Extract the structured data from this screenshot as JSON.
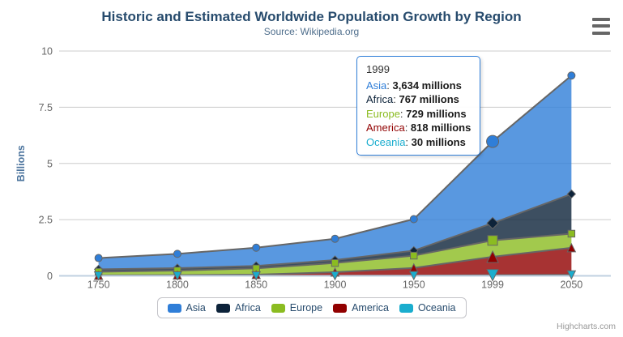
{
  "credits": "Highcharts.com",
  "chart_data": {
    "type": "area",
    "stacking": "normal",
    "title": "Historic and Estimated Worldwide Population Growth by Region",
    "subtitle": "Source: Wikipedia.org",
    "categories": [
      "1750",
      "1800",
      "1850",
      "1900",
      "1950",
      "1999",
      "2050"
    ],
    "unit": "millions",
    "ylabel": "Billions",
    "yticks": [
      0,
      2.5,
      5,
      7.5,
      10
    ],
    "ylim": [
      0,
      10
    ],
    "grid": true,
    "legend_position": "bottom",
    "fill_opacity": 0.8,
    "line_color": "#666666",
    "axis_line_color": "#c0d0e0",
    "grid_color": "#cccccc",
    "hover_category": "1999",
    "series": [
      {
        "name": "Asia",
        "color": "#2f7ed8",
        "marker": "circle",
        "values": [
          502,
          635,
          809,
          947,
          1402,
          3634,
          5268
        ]
      },
      {
        "name": "Africa",
        "color": "#0d233a",
        "marker": "diamond",
        "values": [
          106,
          107,
          111,
          133,
          221,
          767,
          1766
        ]
      },
      {
        "name": "Europe",
        "color": "#8bbc21",
        "marker": "square",
        "values": [
          163,
          203,
          276,
          408,
          547,
          729,
          628
        ]
      },
      {
        "name": "America",
        "color": "#910000",
        "marker": "triangle",
        "values": [
          18,
          31,
          54,
          156,
          339,
          818,
          1201
        ]
      },
      {
        "name": "Oceania",
        "color": "#1aadce",
        "marker": "triangle-down",
        "values": [
          2,
          2,
          2,
          6,
          13,
          30,
          46
        ]
      }
    ]
  },
  "tooltip": {
    "header": "1999",
    "rows": [
      {
        "name": "Asia",
        "color": "#2f7ed8",
        "value": "3,634",
        "unit": "millions"
      },
      {
        "name": "Africa",
        "color": "#0d233a",
        "value": "767",
        "unit": "millions"
      },
      {
        "name": "Europe",
        "color": "#8bbc21",
        "value": "729",
        "unit": "millions"
      },
      {
        "name": "America",
        "color": "#910000",
        "value": "818",
        "unit": "millions"
      },
      {
        "name": "Oceania",
        "color": "#1aadce",
        "value": "30",
        "unit": "millions"
      }
    ]
  }
}
